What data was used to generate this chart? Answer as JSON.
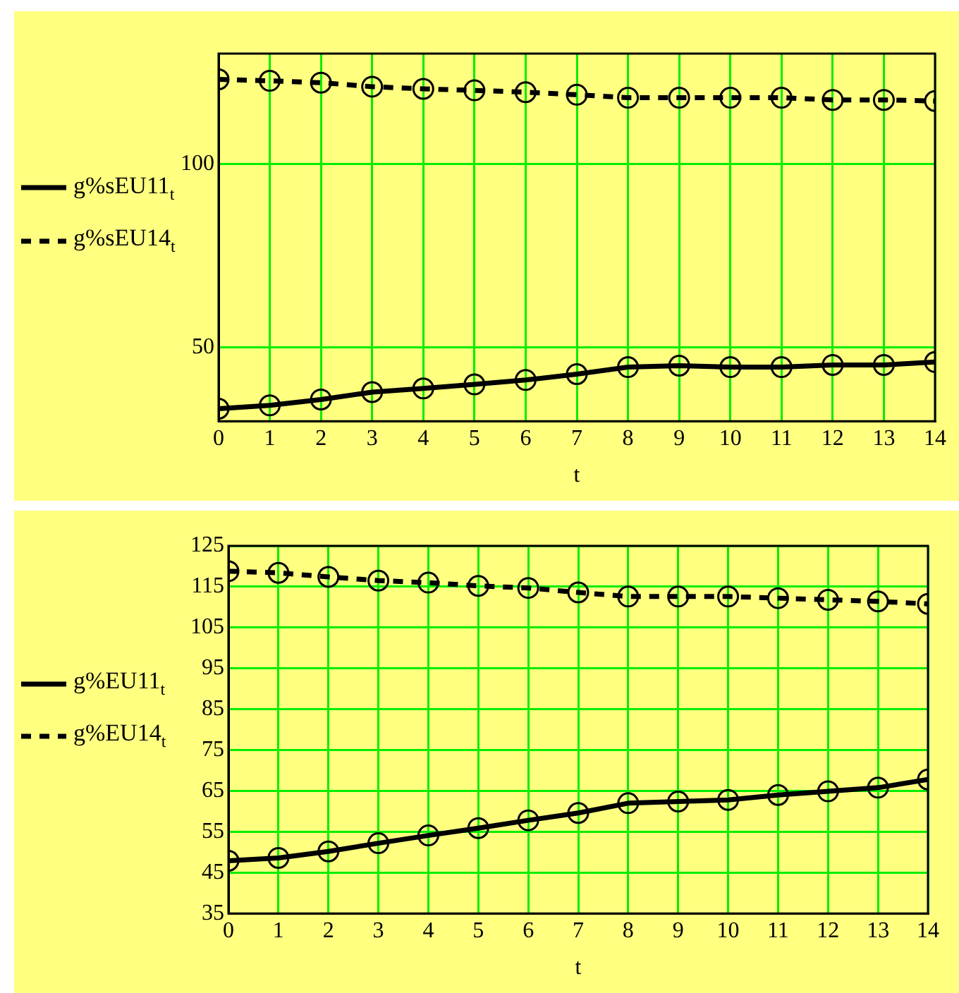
{
  "chart_data": [
    {
      "type": "line",
      "xlabel": "t",
      "x": [
        0,
        1,
        2,
        3,
        4,
        5,
        6,
        7,
        8,
        9,
        10,
        11,
        12,
        13,
        14
      ],
      "xlim": [
        0,
        14
      ],
      "xticks": [
        0,
        1,
        2,
        3,
        4,
        5,
        6,
        7,
        8,
        9,
        10,
        11,
        12,
        13,
        14
      ],
      "ylim": [
        30,
        130
      ],
      "yticks": [
        50,
        100
      ],
      "grid": true,
      "legend": "left",
      "marker": "circle",
      "series": [
        {
          "name": "g%sEU11$_{t}$",
          "color": "#000000",
          "line_style": "solid",
          "values": [
            33.4,
            34.3,
            35.9,
            37.9,
            38.9,
            40,
            41.2,
            42.8,
            44.7,
            45.1,
            44.7,
            44.7,
            45.3,
            45.3,
            46.1
          ]
        },
        {
          "name": "g%sEU14$_{t}$",
          "color": "#000000",
          "line_style": "dashed",
          "values": [
            123,
            122.6,
            122.1,
            121,
            120.4,
            120,
            119.5,
            118.8,
            118,
            118,
            118,
            118,
            117.4,
            117.4,
            117.1
          ]
        }
      ]
    },
    {
      "type": "line",
      "xlabel": "t",
      "x": [
        0,
        1,
        2,
        3,
        4,
        5,
        6,
        7,
        8,
        9,
        10,
        11,
        12,
        13,
        14
      ],
      "xlim": [
        0,
        14
      ],
      "xticks": [
        0,
        1,
        2,
        3,
        4,
        5,
        6,
        7,
        8,
        9,
        10,
        11,
        12,
        13,
        14
      ],
      "ylim": [
        35,
        125
      ],
      "yticks": [
        35,
        45,
        55,
        65,
        75,
        85,
        95,
        105,
        115,
        125
      ],
      "grid": true,
      "legend": "left",
      "marker": "circle",
      "series": [
        {
          "name": "g%EU11$_{t}$",
          "color": "#000000",
          "line_style": "solid",
          "values": [
            47.9,
            48.6,
            50.2,
            52.2,
            54.1,
            55.9,
            57.8,
            59.6,
            62,
            62.4,
            62.8,
            64,
            64.9,
            65.8,
            67.8
          ]
        },
        {
          "name": "g%EU14$_{t}$",
          "color": "#000000",
          "line_style": "dashed",
          "values": [
            118.8,
            118.4,
            117.4,
            116.5,
            116,
            115.2,
            114.7,
            113.6,
            112.6,
            112.6,
            112.6,
            112.2,
            111.8,
            111.4,
            110.8
          ]
        }
      ]
    }
  ]
}
